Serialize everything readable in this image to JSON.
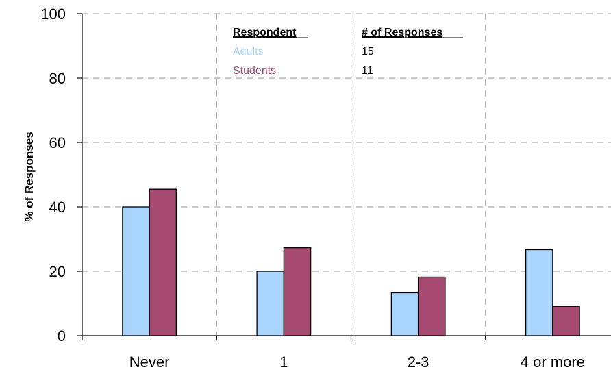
{
  "chart_data": {
    "type": "bar",
    "title": "",
    "xlabel": "",
    "ylabel": "% of Responses",
    "ylim": [
      0,
      100
    ],
    "yticks": [
      0,
      20,
      40,
      60,
      80,
      100
    ],
    "grid": true,
    "legend_placement": "top-center",
    "categories": [
      "Never",
      "1",
      "2-3",
      "4 or more"
    ],
    "series": [
      {
        "name": "Adults",
        "values": [
          40,
          20,
          13.3,
          26.7
        ],
        "color": "#a9d4fb"
      },
      {
        "name": "Students",
        "values": [
          45.5,
          27.3,
          18.2,
          9.1
        ],
        "color": "#a64a72"
      }
    ],
    "legend_table": {
      "header_respondent": "Respondent",
      "header_responses": "# of Responses",
      "rows": [
        {
          "label": "Adults",
          "count": "15"
        },
        {
          "label": "Students",
          "count": "11"
        }
      ]
    }
  }
}
